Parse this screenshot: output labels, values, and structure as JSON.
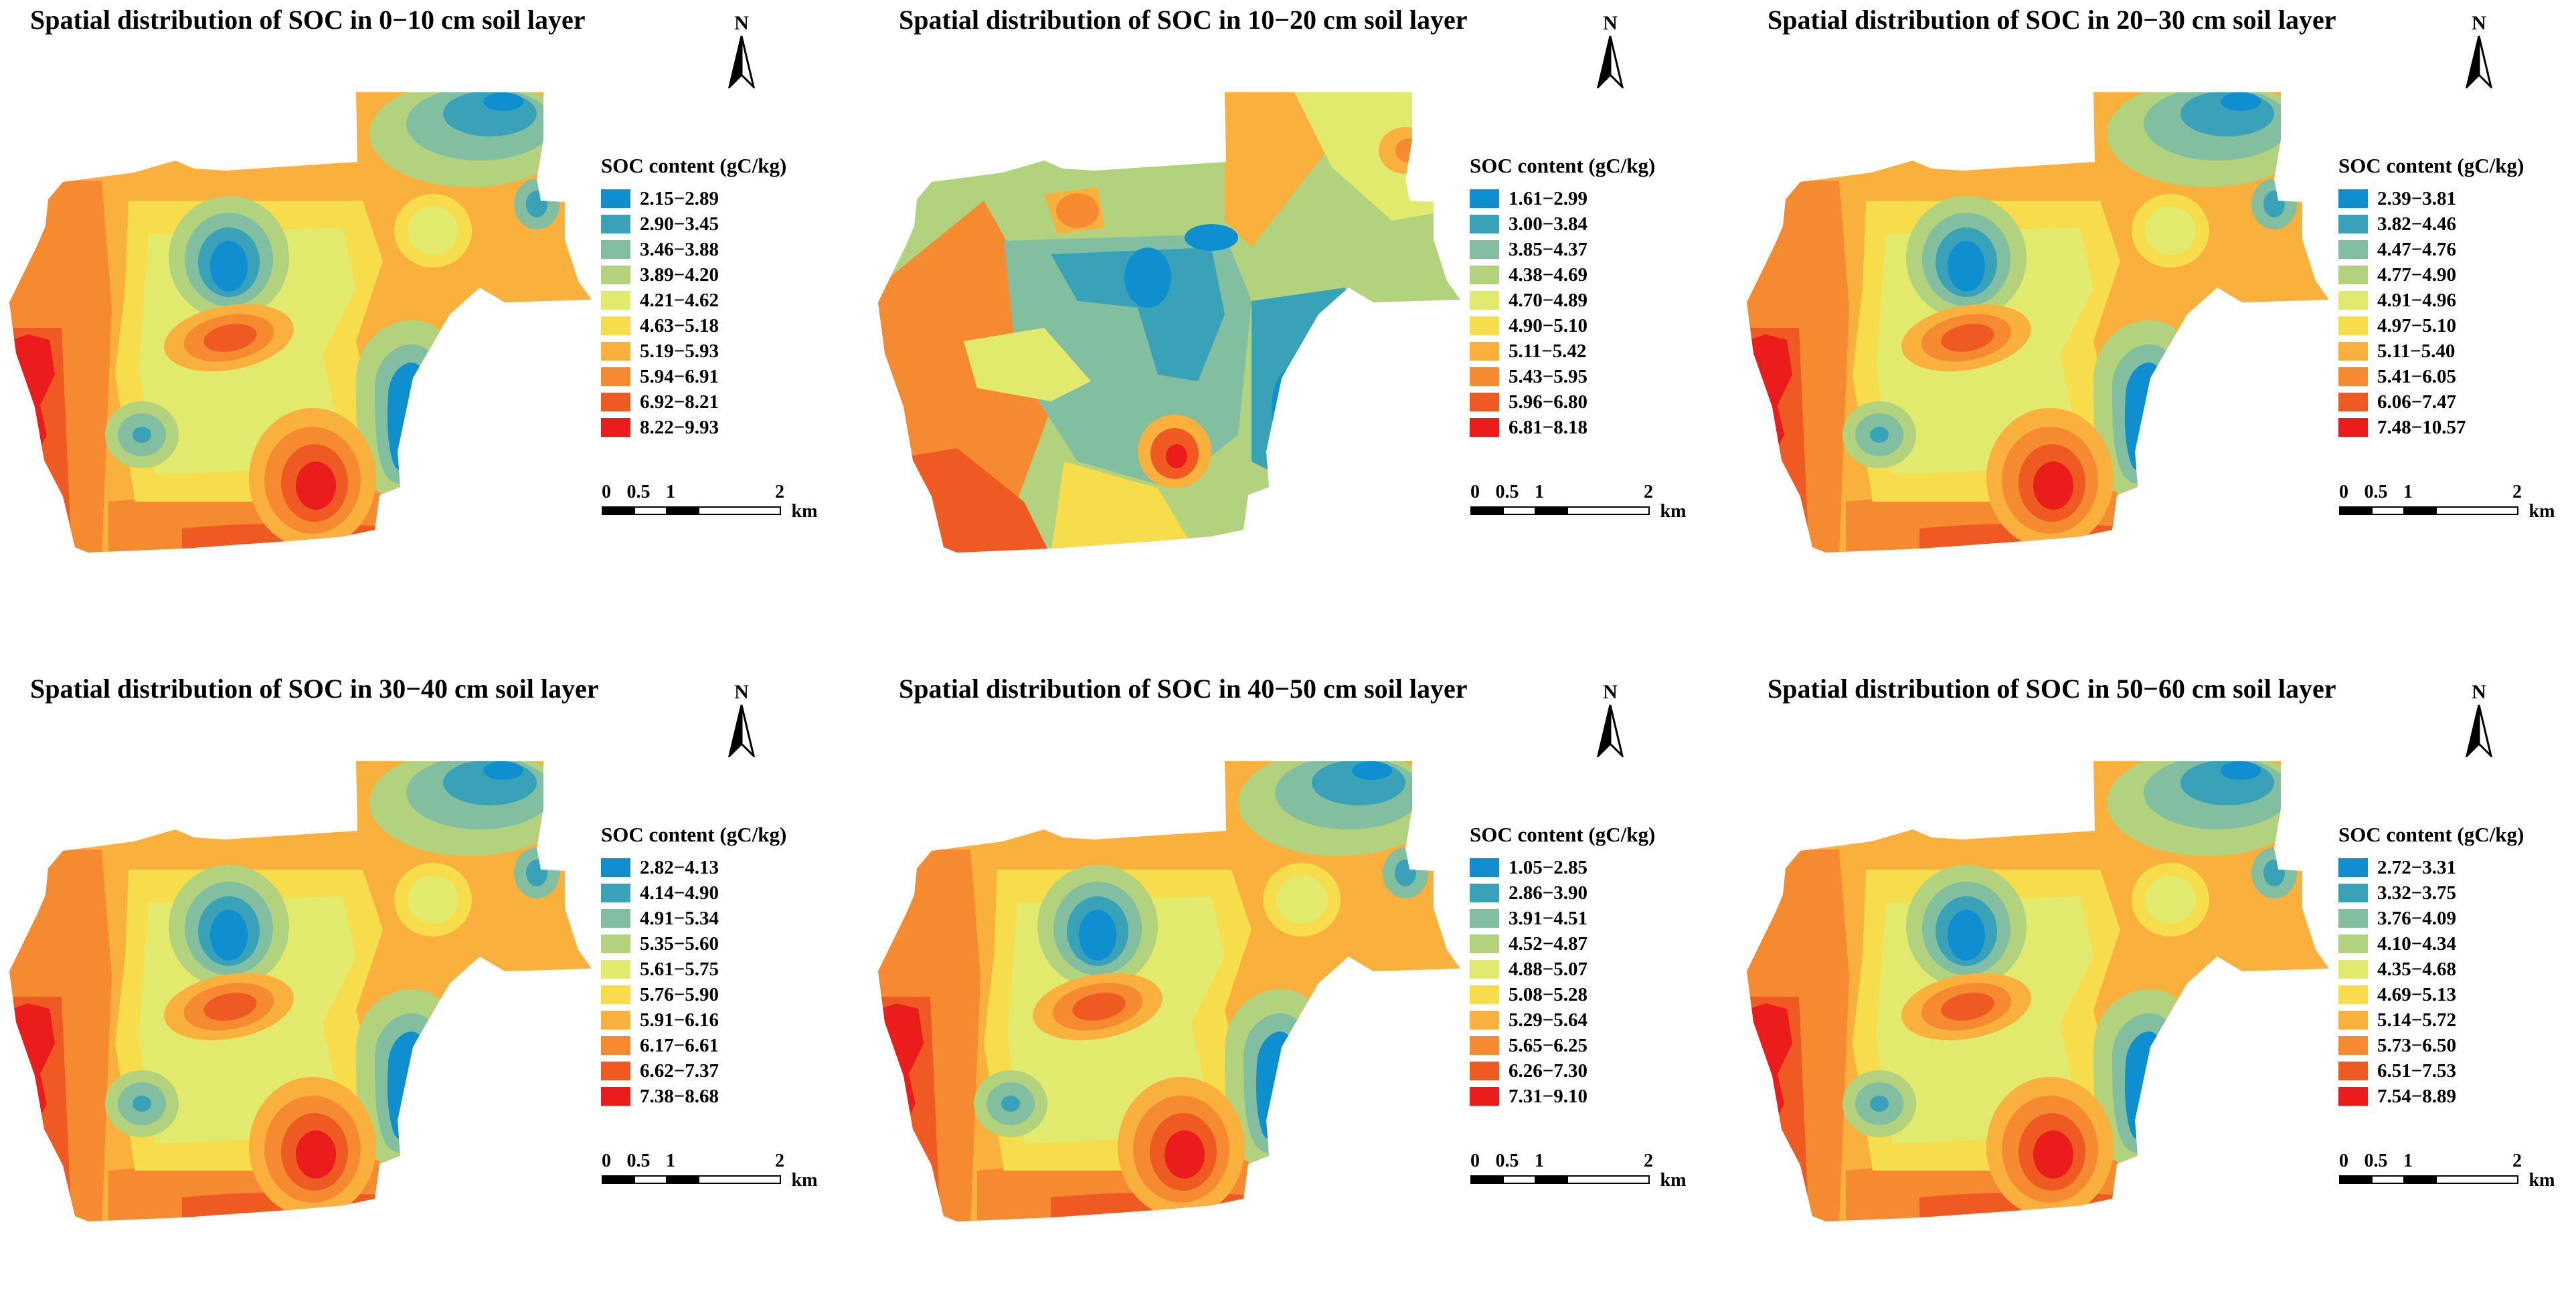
{
  "north": "N",
  "scale": {
    "labels": [
      "0",
      "0.5",
      "1",
      "2"
    ],
    "unit": "km"
  },
  "palette": [
    "#0f8fd0",
    "#39a2b8",
    "#82bea0",
    "#b2d27e",
    "#e2ea6e",
    "#f7dd4b",
    "#f9b03c",
    "#f58a30",
    "#ef5a22",
    "#ea1c1c"
  ],
  "panels": [
    {
      "title": "Spatial distribution of SOC in 0−10 cm soil layer",
      "legend_title": "SOC content (gC/kg)",
      "classes": [
        "2.15−2.89",
        "2.90−3.45",
        "3.46−3.88",
        "3.89−4.20",
        "4.21−4.62",
        "4.63−5.18",
        "5.19−5.93",
        "5.94−6.91",
        "6.92−8.21",
        "8.22−9.93"
      ]
    },
    {
      "title": "Spatial distribution of SOC in 10−20 cm soil layer",
      "legend_title": "SOC content (gC/kg)",
      "classes": [
        "1.61−2.99",
        "3.00−3.84",
        "3.85−4.37",
        "4.38−4.69",
        "4.70−4.89",
        "4.90−5.10",
        "5.11−5.42",
        "5.43−5.95",
        "5.96−6.80",
        "6.81−8.18"
      ]
    },
    {
      "title": "Spatial distribution of SOC in 20−30 cm soil layer",
      "legend_title": "SOC content (gC/kg)",
      "classes": [
        "2.39−3.81",
        "3.82−4.46",
        "4.47−4.76",
        "4.77−4.90",
        "4.91−4.96",
        "4.97−5.10",
        "5.11−5.40",
        "5.41−6.05",
        "6.06−7.47",
        "7.48−10.57"
      ]
    },
    {
      "title": "Spatial distribution of SOC in 30−40 cm soil layer",
      "legend_title": "SOC content (gC/kg)",
      "classes": [
        "2.82−4.13",
        "4.14−4.90",
        "4.91−5.34",
        "5.35−5.60",
        "5.61−5.75",
        "5.76−5.90",
        "5.91−6.16",
        "6.17−6.61",
        "6.62−7.37",
        "7.38−8.68"
      ]
    },
    {
      "title": "Spatial distribution of SOC in 40−50 cm soil layer",
      "legend_title": "SOC content (gC/kg)",
      "classes": [
        "1.05−2.85",
        "2.86−3.90",
        "3.91−4.51",
        "4.52−4.87",
        "4.88−5.07",
        "5.08−5.28",
        "5.29−5.64",
        "5.65−6.25",
        "6.26−7.30",
        "7.31−9.10"
      ]
    },
    {
      "title": "Spatial distribution of SOC in 50−60 cm soil layer",
      "legend_title": "SOC content (gC/kg)",
      "classes": [
        "2.72−3.31",
        "3.32−3.75",
        "3.76−4.09",
        "4.10−4.34",
        "4.35−4.68",
        "4.69−5.13",
        "5.14−5.72",
        "5.73−6.50",
        "6.51−7.53",
        "7.54−8.89"
      ]
    }
  ]
}
